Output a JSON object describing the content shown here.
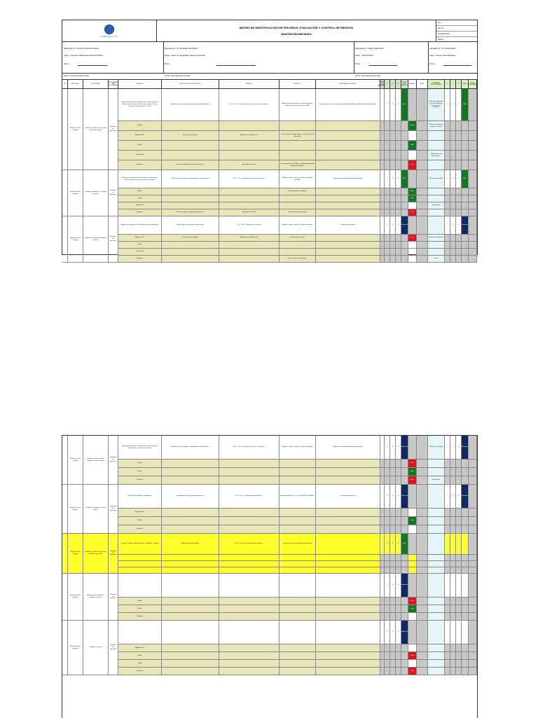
{
  "header": {
    "company": "CORPESCA S.A.",
    "title": "MATRIZ DE IDENTIFICACIÓN DE PELIGROS, EVALUACIÓN Y CONTROL DE RIESGOS",
    "subtitle": "MANTENCIÓN MECÁNICA",
    "code_lines": [
      "Ver:",
      "Rev. N°",
      "Fecha Emisión",
      "Página"
    ]
  },
  "responsibles": {
    "elaborado_por": "Elaborado por : El Grupo Gerente Hombres",
    "elaborado_cargo": "Cargo : Supervisor Mantención Mecánica Planta",
    "elaborado_firma": "Firma:",
    "revisado_por": "Revisado por : Sr. Sebastián Jorre Busch",
    "revisado_cargo": "Cargo : Asesor en Seguridad y Salud Ocupacional",
    "revisado_firma": "Firma:",
    "validado_por": "Revisado por : Freddy Gatica Barra",
    "validado_cargo": "Cargo : Jefe de Planta",
    "validado_firma": "Firma:",
    "aprobado_por": "Aprobado por : Sr. Jaime Bustos",
    "aprobado_cargo": "Cargo : Gerente Área Mejillones",
    "aprobado_firma": "Firma:"
  },
  "date_labels": {
    "fecha_left": "Fecha : 11 de Noviembre de 2014",
    "fecha_mid": "Fecha : 11 de Noviembre de 2014",
    "fecha_right": "Fecha : 11 de Noviembre de 2014"
  },
  "columns": [
    "N°",
    "PROCESO",
    "ACTIVIDAD",
    "RUTINARIA / NO RUTINARIA",
    "PELIGRO",
    "DESCRIPCIÓN DEL PELIGRO",
    "RIESGO",
    "EFECTO",
    "MEDIDAS EXISTENTES",
    "MEDIDAS DE CONTROL SUGERIDAS",
    "P",
    "C",
    "E",
    "NIVEL DE RIESGO",
    "RIESGO",
    "NIVEL",
    "MEDIDAS ADICIONALES",
    "P",
    "C",
    "E",
    "NIVEL",
    "NIVEL ACEPTABLE"
  ],
  "blocks_sheet1": [
    {
      "proceso": "Mantención de equipos",
      "actividad": "Trabajos, mediciones y traslado de ejes de arrastre",
      "rutina": "Rutinaria en operación",
      "descripcion": "Superficies irregulares / obstáculos con presencia de obstrucciones en áreas de tránsito y trabajo. Ductos, canaletas y desniveles en el piso.",
      "riesgo": "Caída mismo nivel, golpes, atrapamiento, sobreesfuerzo.",
      "efecto": "H. D. - H.C. Contusiones, fracturas, esguinces y lesiones.",
      "medidas": "Mantener orden y aseo en el lugar de trabajo, delimitar áreas de tránsito, usar EPP.",
      "sugeridas": "Capacitar al personal y supervisar cumplimiento del procedimiento de trabajo seguro.",
      "p": "2",
      "c": "4",
      "e": "4",
      "nivel": "Alto",
      "adicionales": "Charla de seguridad y uso de elementos de protección personal.",
      "p2": "1",
      "c2": "4",
      "e2": "4",
      "nivel2": "Alto",
      "subrows": [
        {
          "peligro": "Ruido",
          "riesgo": "",
          "efecto": "",
          "medidas": "",
          "sugeridas": "",
          "nivel": "",
          "tag": "Medio",
          "adic": "Charla procedimiento seguro de trabajo"
        },
        {
          "peligro": "Radiación UV",
          "riesgo": "Por tareas al aire libre",
          "efecto": "Exposición a radiación UV",
          "medidas": "Uso de protector solar, lentes con filtro UV, ropa adecuada.",
          "sugeridas": "",
          "nivel": "",
          "tag": "",
          "adic": ""
        },
        {
          "peligro": "Polvo",
          "riesgo": "",
          "efecto": "",
          "medidas": "",
          "sugeridas": "",
          "nivel": "",
          "tag": "Bajo",
          "adic": ""
        },
        {
          "peligro": "Vibraciones",
          "riesgo": "",
          "efecto": "",
          "medidas": "",
          "sugeridas": "",
          "nivel": "",
          "tag": "",
          "adic": "Capacitación uso herramientas"
        },
        {
          "peligro": "Químicos",
          "riesgo": "No usar equipos de protección personal",
          "efecto": "Exposición a Gases",
          "medidas": "Uso de máscara con filtros, ventilación adecuada del área de trabajo.",
          "sugeridas": "",
          "nivel": "",
          "tag": "Crítico",
          "adic": ""
        }
      ]
    },
    {
      "proceso": "Mantención de equipos",
      "actividad": "Trabajos, mediciones y traslado de ejes",
      "rutina": "Rutinaria en operación",
      "descripcion": "Superficies irregulares / obstáculos con presencia de obstrucciones en áreas de tránsito y trabajo.",
      "riesgo": "Caída mismo nivel, golpes, atrapamiento, sobreesfuerzo.",
      "efecto": "H. D. - H.C. Contusiones, fracturas, esguinces.",
      "medidas": "Mantener orden y aseo en el lugar de trabajo, usar EPP.",
      "sugeridas": "Supervisar cumplimiento del procedimiento.",
      "p": "2",
      "c": "4",
      "e": "4",
      "nivel": "Alto",
      "adicionales": "Charla de seguridad.",
      "p2": "1",
      "c2": "4",
      "e2": "4",
      "nivel2": "Alto",
      "subrows": [
        {
          "peligro": "Ruido",
          "riesgo": "",
          "efecto": "",
          "medidas": "Uso de protección auditiva",
          "sugeridas": "",
          "nivel": "",
          "tag": "Medio",
          "adic": ""
        },
        {
          "peligro": "Polvo",
          "riesgo": "",
          "efecto": "",
          "medidas": "",
          "sugeridas": "",
          "nivel": "",
          "tag": "Bajo",
          "adic": ""
        },
        {
          "peligro": "Vibraciones",
          "riesgo": "",
          "efecto": "",
          "medidas": "",
          "sugeridas": "",
          "nivel": "",
          "tag": "",
          "adic": "Capacitación"
        },
        {
          "peligro": "Químicos",
          "riesgo": "No usar equipos de protección personal",
          "efecto": "Exposición a Gases",
          "medidas": "Uso de máscara con filtros.",
          "sugeridas": "",
          "nivel": "",
          "tag": "Crítico",
          "adic": ""
        }
      ]
    },
    {
      "proceso": "Mantención de equipos",
      "actividad": "Trabajos en cambio de bombas y motores",
      "rutina": "Rutinaria en operación",
      "descripcion": "Superficies irregulares / obstáculos en áreas de tránsito.",
      "riesgo": "Caída mismo nivel, golpes, atrapamiento.",
      "efecto": "H. D. - H.C. Contusiones, fracturas.",
      "medidas": "Mantener orden y aseo en el lugar de trabajo.",
      "sugeridas": "Capacitar al personal.",
      "p": "2",
      "c": "4",
      "e": "4",
      "nivel": "Moderado",
      "adicionales": "",
      "p2": "1",
      "c2": "4",
      "e2": "4",
      "nivel2": "Moderado",
      "subrows": [
        {
          "peligro": "Radiación UV",
          "riesgo": "Por tareas al aire libre",
          "efecto": "Exposición a radiación UV",
          "medidas": "Uso de protector solar.",
          "sugeridas": "",
          "nivel": "",
          "tag": "Crítico",
          "adic": "Charla procedimiento"
        },
        {
          "peligro": "Polvo",
          "riesgo": "",
          "efecto": "",
          "medidas": "",
          "sugeridas": "",
          "nivel": "",
          "tag": "",
          "adic": ""
        },
        {
          "peligro": "Vibraciones",
          "riesgo": "",
          "efecto": "",
          "medidas": "",
          "sugeridas": "",
          "nivel": "",
          "tag": "",
          "adic": ""
        },
        {
          "peligro": "Químicos",
          "riesgo": "",
          "efecto": "",
          "medidas": "Uso de máscara con filtros",
          "sugeridas": "",
          "nivel": "",
          "tag": "",
          "adic": "Charla"
        }
      ]
    }
  ],
  "blocks_sheet2": [
    {
      "proceso": "Mantención de equipos",
      "actividad": "Trabajos en torno, cepillo, fresadora, esmeril, taladro",
      "rutina": "Rutinaria en operación",
      "descripcion": "Superficies irregulares / obstáculos con presencia de obstrucciones en áreas de tránsito.",
      "riesgo": "Caída mismo nivel, golpes, atrapamiento, sobreesfuerzo.",
      "efecto": "H. D. - H.C. Contusiones, fracturas, esguinces.",
      "medidas": "Mantener orden y aseo en el lugar de trabajo.",
      "sugeridas": "Supervisar cumplimiento del procedimiento.",
      "p": "2",
      "c": "4",
      "e": "4",
      "nivel": "Moderado",
      "adicionales": "Charla de seguridad.",
      "p2": "1",
      "c2": "4",
      "e2": "4",
      "nivel2": "Moderado",
      "subrows": [
        {
          "peligro": "Ruido",
          "tag": "Crítico",
          "adic": ""
        },
        {
          "peligro": "Polvo",
          "tag": "Bajo",
          "adic": ""
        },
        {
          "peligro": "Químicos",
          "tag": "Crítico",
          "adic": "Capacitación"
        }
      ]
    },
    {
      "proceso": "Mantención de equipos",
      "actividad": "Trabajos de soldadura y corte oxigas",
      "rutina": "Rutinaria en operación",
      "descripcion": "Superficies irregulares / obstáculos.",
      "riesgo": "Caída mismo nivel, golpes, quemaduras.",
      "efecto": "H. D. - H.C. Contusiones, quemaduras.",
      "medidas": "Mantener orden y aseo, uso de EPP de soldador.",
      "sugeridas": "Capacitar al personal.",
      "p": "2",
      "c": "4",
      "e": "4",
      "nivel": "Moderado",
      "adicionales": "",
      "p2": "1",
      "c2": "4",
      "e2": "4",
      "nivel2": "Moderado",
      "subrows": [
        {
          "peligro": "Radiación UV",
          "tag": "",
          "adic": ""
        },
        {
          "peligro": "Polvo",
          "tag": "Bajo",
          "adic": ""
        },
        {
          "peligro": "Químicos",
          "tag": "",
          "adic": ""
        }
      ]
    }
  ],
  "highlight_block": {
    "proceso": "Mantención de equipos",
    "actividad": "Trabajos en altura física, uso de andamios y escalas",
    "rutina": "Rutinaria en operación",
    "descripcion": "Trabajo en altura sobre estructuras, andamios, escalas.",
    "riesgo": "Caída distinto nivel, golpes.",
    "efecto": "H. D. - H.C. Fracturas, lesiones múltiples.",
    "medidas": "Uso de arnés de seguridad y línea de vida.",
    "p": "3",
    "c": "4",
    "e": "4",
    "nivel": "Alto",
    "red_note": "Trabajo en altura física"
  },
  "extra_blocks": [
    {
      "proceso": "Mantención de equipos",
      "actividad": "Reparación de calderas y equipos a presión",
      "rutina": "Rutinaria en operación",
      "p": "2",
      "c": "4",
      "e": "4",
      "nivel": "Moderado",
      "subrows": [
        {
          "peligro": "Ruido",
          "tag": "Crítico"
        },
        {
          "peligro": "Polvo",
          "tag": "Bajo"
        },
        {
          "peligro": "Químicos",
          "tag": ""
        }
      ]
    },
    {
      "proceso": "Mantención de equipos",
      "actividad": "Trabajos en cintas",
      "rutina": "Rutinaria en operación",
      "p": "2",
      "c": "4",
      "e": "4",
      "nivel": "Moderado",
      "subrows": [
        {
          "peligro": "Radiación UV",
          "tag": ""
        },
        {
          "peligro": "Ruido",
          "tag": "Crítico"
        },
        {
          "peligro": "Polvo",
          "tag": ""
        },
        {
          "peligro": "Químicos",
          "tag": "Crítico"
        }
      ]
    }
  ],
  "colors": {
    "green": "#0f7a1e",
    "red": "#e8101a",
    "navy": "#0d2a66",
    "yellow": "#ffff2a",
    "tan": "#e8e6b8",
    "gray": "#c8c8c8",
    "cyan": "#e4f6f8"
  }
}
